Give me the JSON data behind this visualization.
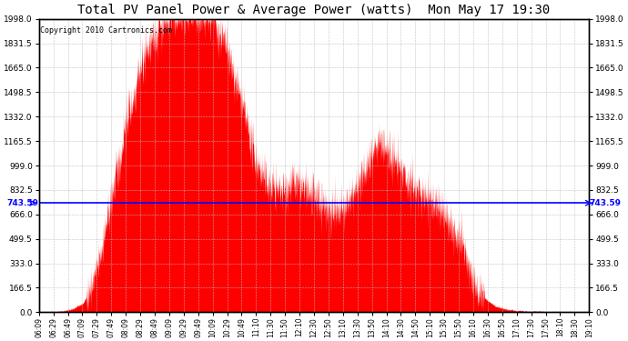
{
  "title": "Total PV Panel Power & Average Power (watts)  Mon May 17 19:30",
  "copyright": "Copyright 2010 Cartronics.com",
  "ymin": 0.0,
  "ymax": 1998.0,
  "yticks": [
    0.0,
    166.5,
    333.0,
    499.5,
    666.0,
    832.5,
    999.0,
    1165.5,
    1332.0,
    1498.5,
    1665.0,
    1831.5,
    1998.0
  ],
  "average_value": 743.59,
  "fill_color": "red",
  "line_color": "blue",
  "avg_label_color": "blue",
  "background_color": "#ffffff",
  "grid_color": "#bbbbbb",
  "xtick_labels": [
    "06:09",
    "06:29",
    "06:49",
    "07:09",
    "07:29",
    "07:49",
    "08:09",
    "08:29",
    "08:49",
    "09:09",
    "09:29",
    "09:49",
    "10:09",
    "10:29",
    "10:49",
    "11:10",
    "11:30",
    "11:50",
    "12:10",
    "12:30",
    "12:50",
    "13:10",
    "13:30",
    "13:50",
    "14:10",
    "14:30",
    "14:50",
    "15:10",
    "15:30",
    "15:50",
    "16:10",
    "16:30",
    "16:50",
    "17:10",
    "17:30",
    "17:50",
    "18:10",
    "18:30",
    "19:10"
  ],
  "curve_keypoints_f": [
    0.0,
    0.02,
    0.04,
    0.06,
    0.08,
    0.095,
    0.11,
    0.125,
    0.14,
    0.155,
    0.165,
    0.175,
    0.185,
    0.195,
    0.205,
    0.215,
    0.222,
    0.228,
    0.235,
    0.242,
    0.248,
    0.255,
    0.262,
    0.268,
    0.275,
    0.282,
    0.29,
    0.298,
    0.305,
    0.312,
    0.318,
    0.325,
    0.332,
    0.34,
    0.348,
    0.355,
    0.362,
    0.37,
    0.378,
    0.385,
    0.392,
    0.4,
    0.408,
    0.415,
    0.422,
    0.43,
    0.438,
    0.445,
    0.452,
    0.46,
    0.468,
    0.475,
    0.482,
    0.49,
    0.498,
    0.505,
    0.512,
    0.52,
    0.528,
    0.535,
    0.542,
    0.55,
    0.558,
    0.565,
    0.572,
    0.58,
    0.588,
    0.595,
    0.602,
    0.61,
    0.618,
    0.625,
    0.632,
    0.64,
    0.648,
    0.655,
    0.662,
    0.67,
    0.678,
    0.685,
    0.692,
    0.7,
    0.71,
    0.72,
    0.73,
    0.74,
    0.75,
    0.76,
    0.77,
    0.78,
    0.79,
    0.8,
    0.815,
    0.83,
    0.85,
    0.87,
    0.89,
    0.91,
    0.93,
    0.96,
    1.0
  ],
  "curve_keypoints_y": [
    0.0,
    0.001,
    0.003,
    0.01,
    0.03,
    0.08,
    0.18,
    0.32,
    0.47,
    0.58,
    0.66,
    0.74,
    0.81,
    0.87,
    0.91,
    0.94,
    0.96,
    0.975,
    0.99,
    0.998,
    1.0,
    0.99,
    0.975,
    0.985,
    0.998,
    0.99,
    0.97,
    0.96,
    0.98,
    0.998,
    0.985,
    0.96,
    0.94,
    0.9,
    0.85,
    0.8,
    0.76,
    0.7,
    0.64,
    0.58,
    0.53,
    0.49,
    0.46,
    0.44,
    0.43,
    0.42,
    0.415,
    0.42,
    0.43,
    0.44,
    0.435,
    0.425,
    0.415,
    0.405,
    0.395,
    0.385,
    0.375,
    0.365,
    0.355,
    0.345,
    0.335,
    0.34,
    0.36,
    0.38,
    0.4,
    0.43,
    0.46,
    0.5,
    0.53,
    0.56,
    0.58,
    0.57,
    0.55,
    0.53,
    0.51,
    0.49,
    0.47,
    0.45,
    0.435,
    0.42,
    0.41,
    0.4,
    0.385,
    0.37,
    0.35,
    0.32,
    0.29,
    0.26,
    0.22,
    0.16,
    0.11,
    0.07,
    0.04,
    0.02,
    0.01,
    0.005,
    0.003,
    0.002,
    0.001,
    0.0,
    0.0
  ]
}
